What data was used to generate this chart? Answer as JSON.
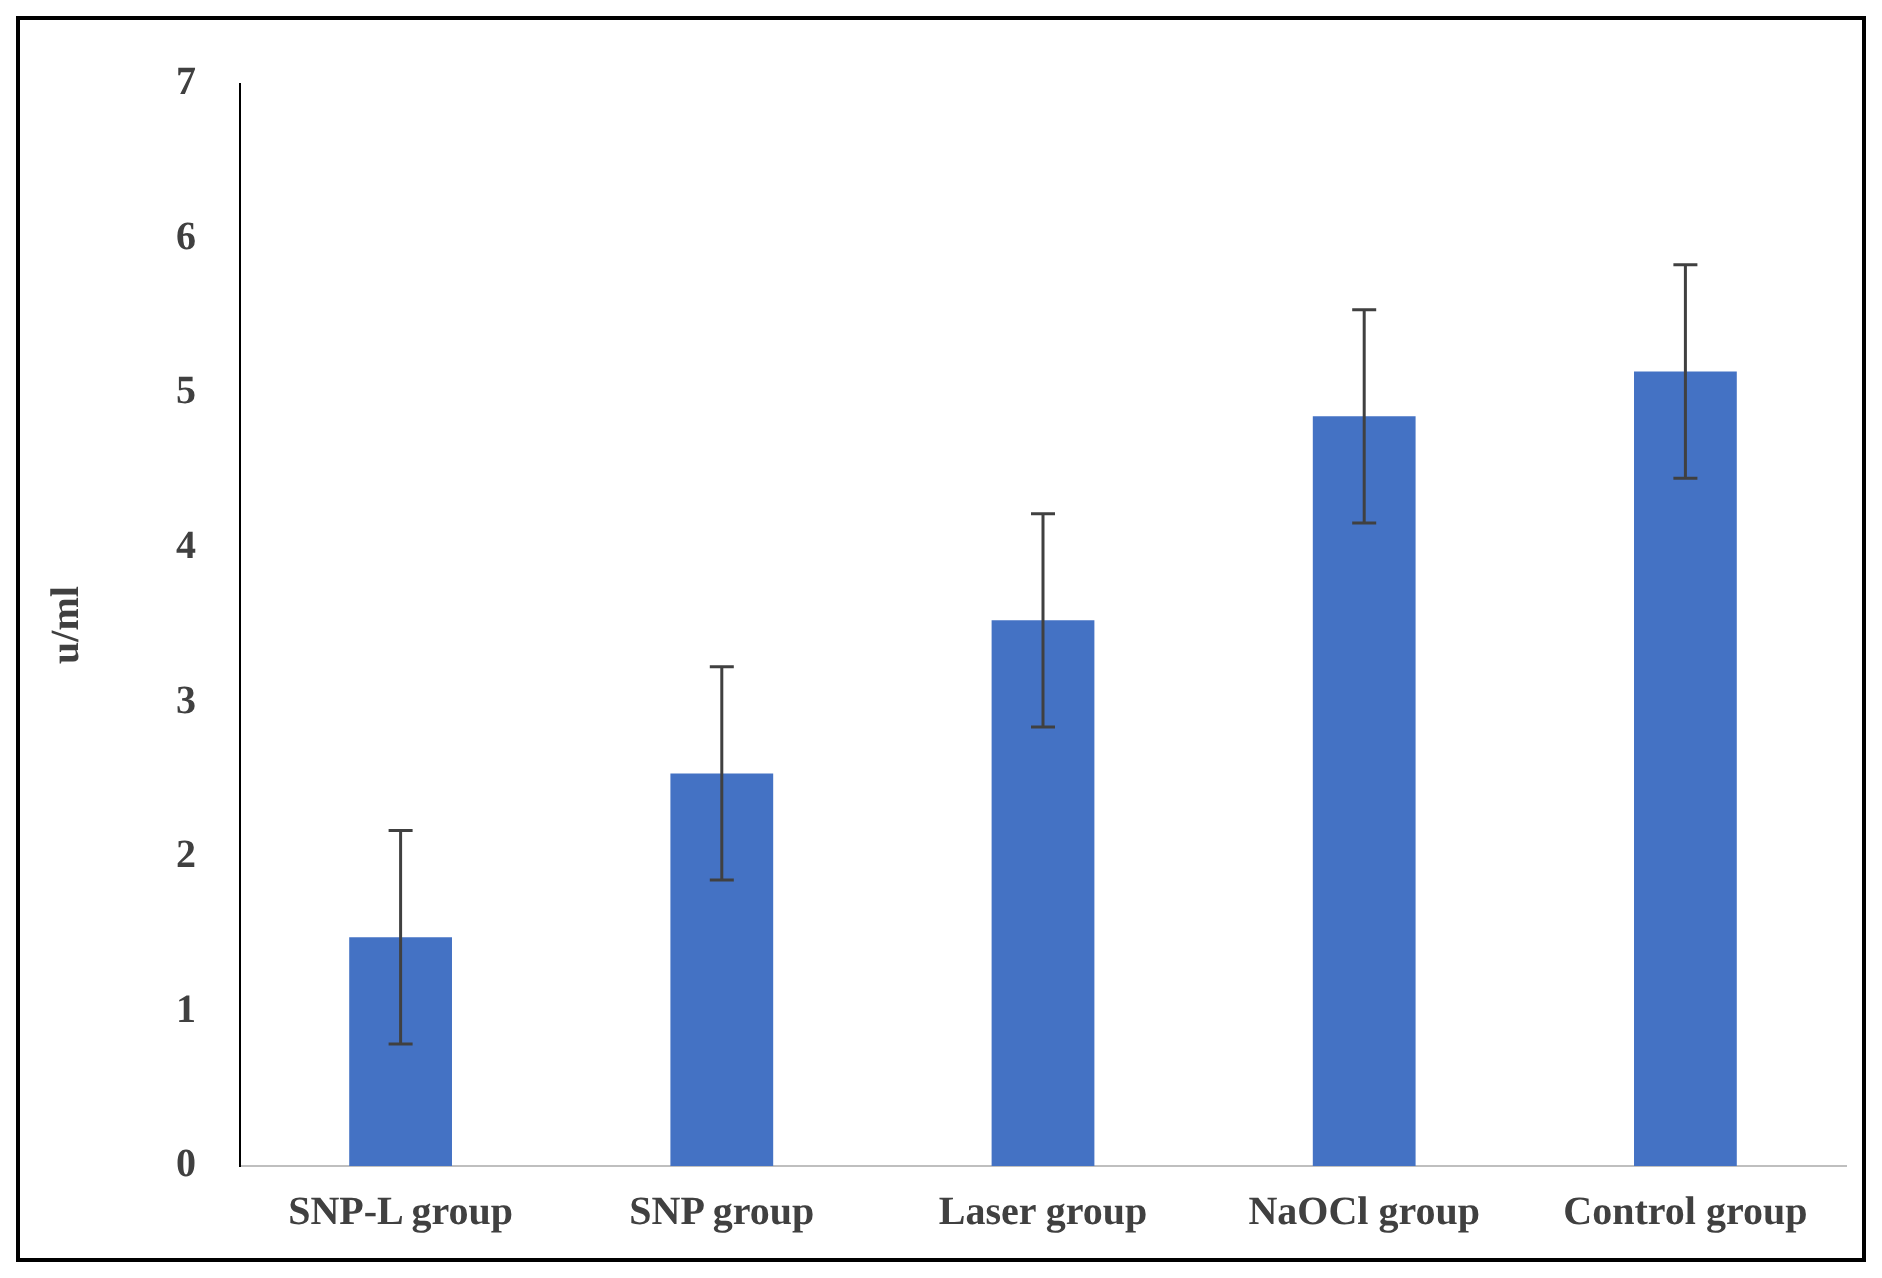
{
  "chart_data": {
    "type": "bar",
    "categories": [
      "SNP-L group",
      "SNP group",
      "Laser group",
      "NaOCl group",
      "Control group"
    ],
    "values": [
      1.48,
      2.54,
      3.53,
      4.85,
      5.14
    ],
    "errors": [
      0.69,
      0.69,
      0.69,
      0.69,
      0.69
    ],
    "color": "#4472c4",
    "ylabel": "u/ml",
    "ylim": [
      0,
      7
    ],
    "yticks": [
      0,
      1,
      2,
      3,
      4,
      5,
      6,
      7
    ],
    "grid": false,
    "legend": false
  }
}
